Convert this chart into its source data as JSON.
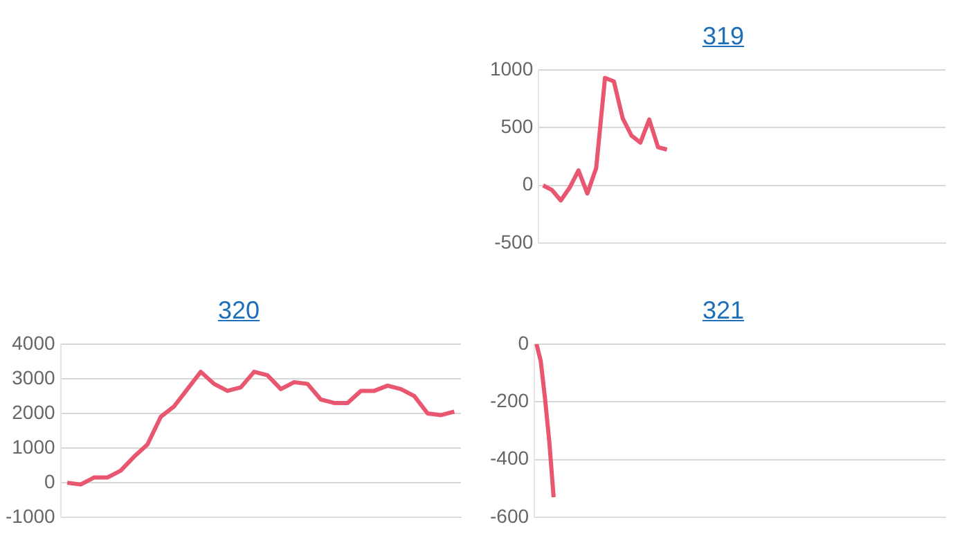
{
  "chart_data": [
    {
      "type": "line",
      "title": "319",
      "categories": [
        null,
        null,
        null,
        null,
        null,
        null,
        null,
        null,
        null,
        null,
        null,
        null,
        null,
        null,
        null,
        null,
        null,
        null,
        null,
        null,
        null,
        null,
        null,
        null,
        null,
        null,
        null,
        null,
        null,
        null,
        null,
        null,
        null,
        null,
        null,
        null,
        null,
        null,
        null,
        null,
        null,
        null,
        null,
        null,
        null,
        null
      ],
      "series": [
        {
          "color": "#e8566f",
          "values": [
            0,
            -40,
            -130,
            -20,
            130,
            -70,
            150,
            930,
            900,
            580,
            430,
            370,
            570,
            330,
            310,
            null,
            null,
            null,
            null,
            null,
            null,
            null,
            null,
            null,
            null,
            null,
            null,
            null,
            null,
            null,
            null,
            null,
            null,
            null,
            null,
            null,
            null,
            null,
            null,
            null,
            null,
            null,
            null,
            null,
            null,
            null
          ]
        }
      ],
      "ylim": [
        -500,
        1000
      ],
      "yticks": [
        -500,
        0,
        500,
        1000
      ],
      "grid": "y",
      "legend": false,
      "tick_labels": "y",
      "marker": "none",
      "line_style": "solid"
    },
    {
      "type": "line",
      "title": "320",
      "categories": [
        null,
        null,
        null,
        null,
        null,
        null,
        null,
        null,
        null,
        null,
        null,
        null,
        null,
        null,
        null,
        null,
        null,
        null,
        null,
        null,
        null,
        null,
        null,
        null,
        null,
        null,
        null,
        null,
        null,
        null
      ],
      "series": [
        {
          "color": "#e8566f",
          "values": [
            0,
            -50,
            150,
            150,
            350,
            750,
            1100,
            1900,
            2200,
            2700,
            3200,
            2850,
            2650,
            2750,
            3200,
            3100,
            2700,
            2900,
            2850,
            2400,
            2300,
            2300,
            2650,
            2650,
            2800,
            2700,
            2500,
            2000,
            1950,
            2050
          ]
        }
      ],
      "ylim": [
        -1000,
        4000
      ],
      "yticks": [
        -1000,
        0,
        1000,
        2000,
        3000,
        4000
      ],
      "grid": "y",
      "legend": false,
      "tick_labels": "y",
      "marker": "none",
      "line_style": "solid"
    },
    {
      "type": "line",
      "title": "321",
      "categories": [
        null,
        null,
        null,
        null,
        null,
        null,
        null,
        null,
        null,
        null,
        null,
        null,
        null,
        null,
        null,
        null,
        null,
        null,
        null,
        null,
        null,
        null,
        null,
        null,
        null,
        null,
        null,
        null,
        null,
        null,
        null,
        null,
        null,
        null,
        null,
        null,
        null,
        null,
        null,
        null,
        null,
        null,
        null,
        null,
        null,
        null,
        null,
        null,
        null,
        null,
        null,
        null,
        null,
        null,
        null,
        null,
        null,
        null,
        null,
        null,
        null,
        null,
        null,
        null,
        null,
        null,
        null,
        null,
        null,
        null,
        null,
        null,
        null,
        null,
        null,
        null,
        null,
        null,
        null,
        null,
        null,
        null,
        null,
        null,
        null,
        null,
        null,
        null,
        null,
        null,
        null,
        null,
        null,
        null,
        null,
        null
      ],
      "series": [
        {
          "color": "#e8566f",
          "values": [
            0,
            -60,
            -190,
            -340,
            -530,
            null,
            null,
            null,
            null,
            null,
            null,
            null,
            null,
            null,
            null,
            null,
            null,
            null,
            null,
            null,
            null,
            null,
            null,
            null,
            null,
            null,
            null,
            null,
            null,
            null,
            null,
            null,
            null,
            null,
            null,
            null,
            null,
            null,
            null,
            null,
            null,
            null,
            null,
            null,
            null,
            null,
            null,
            null,
            null,
            null,
            null,
            null,
            null,
            null,
            null,
            null,
            null,
            null,
            null,
            null,
            null,
            null,
            null,
            null,
            null,
            null,
            null,
            null,
            null,
            null,
            null,
            null,
            null,
            null,
            null,
            null,
            null,
            null,
            null,
            null,
            null,
            null,
            null,
            null,
            null,
            null,
            null,
            null,
            null,
            null,
            null,
            null,
            null,
            null,
            null,
            null
          ]
        }
      ],
      "ylim": [
        -600,
        0
      ],
      "yticks": [
        -600,
        -400,
        -200,
        0
      ],
      "grid": "y",
      "legend": false,
      "tick_labels": "y",
      "marker": "none",
      "line_style": "solid"
    }
  ]
}
